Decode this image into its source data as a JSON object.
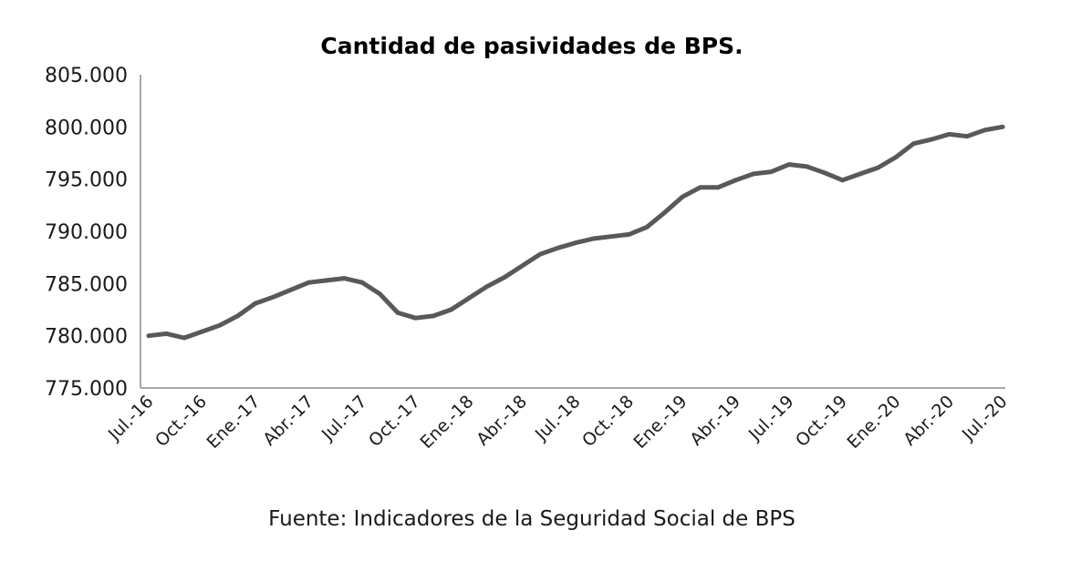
{
  "chart_data": {
    "type": "line",
    "title": "Cantidad de pasividades de BPS.",
    "source": "Fuente: Indicadores de la Seguridad Social de BPS",
    "xlabel": "",
    "ylabel": "",
    "ylim": [
      775000,
      805000
    ],
    "y_ticks": [
      775000,
      780000,
      785000,
      790000,
      795000,
      800000,
      805000
    ],
    "y_tick_labels": [
      "775.000",
      "780.000",
      "785.000",
      "790.000",
      "795.000",
      "800.000",
      "805.000"
    ],
    "x_tick_labels": [
      "Jul.-16",
      "Oct.-16",
      "Ene.-17",
      "Abr.-17",
      "Jul.-17",
      "Oct.-17",
      "Ene.-18",
      "Abr.-18",
      "Jul.-18",
      "Oct.-18",
      "Ene.-19",
      "Abr.-19",
      "Jul.-19",
      "Oct.-19",
      "Ene.-20",
      "Abr.-20",
      "Jul.-20"
    ],
    "grid": false,
    "legend": "none",
    "x": [
      "Jul.-16",
      "Ago.-16",
      "Sep.-16",
      "Oct.-16",
      "Nov.-16",
      "Dic.-16",
      "Ene.-17",
      "Feb.-17",
      "Mar.-17",
      "Abr.-17",
      "May.-17",
      "Jun.-17",
      "Jul.-17",
      "Ago.-17",
      "Sep.-17",
      "Oct.-17",
      "Nov.-17",
      "Dic.-17",
      "Ene.-18",
      "Feb.-18",
      "Mar.-18",
      "Abr.-18",
      "May.-18",
      "Jun.-18",
      "Jul.-18",
      "Ago.-18",
      "Sep.-18",
      "Oct.-18",
      "Nov.-18",
      "Dic.-18",
      "Ene.-19",
      "Feb.-19",
      "Mar.-19",
      "Abr.-19",
      "May.-19",
      "Jun.-19",
      "Jul.-19",
      "Ago.-19",
      "Sep.-19",
      "Oct.-19",
      "Nov.-19",
      "Dic.-19",
      "Ene.-20",
      "Feb.-20",
      "Mar.-20",
      "Abr.-20",
      "May.-20",
      "Jun.-20",
      "Jul.-20"
    ],
    "series": [
      {
        "color": "#595959",
        "values": [
          780000,
          780200,
          779800,
          780400,
          781000,
          781900,
          783100,
          783700,
          784400,
          785100,
          785300,
          785500,
          785100,
          784000,
          782200,
          781700,
          781900,
          782500,
          783600,
          784700,
          785600,
          786700,
          787800,
          788400,
          788900,
          789300,
          789500,
          789700,
          790400,
          791800,
          793300,
          794200,
          794200,
          794900,
          795500,
          795700,
          796400,
          796200,
          795600,
          794900,
          795500,
          796100,
          797100,
          798400,
          798800,
          799300,
          799100,
          799700,
          800000
        ]
      }
    ]
  }
}
